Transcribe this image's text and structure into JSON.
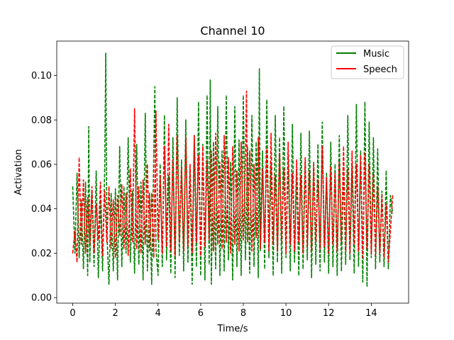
{
  "chart_data": {
    "type": "line",
    "title": "Channel 10",
    "xlabel": "Time/s",
    "ylabel": "Activation",
    "xlim": [
      -0.75,
      15.75
    ],
    "ylim": [
      -0.0025,
      0.1155
    ],
    "xticks": [
      0,
      2,
      4,
      6,
      8,
      10,
      12,
      14
    ],
    "yticks": [
      0.0,
      0.02,
      0.04,
      0.06,
      0.08,
      0.1
    ],
    "ytick_labels": [
      "0.00",
      "0.02",
      "0.04",
      "0.06",
      "0.08",
      "0.10"
    ],
    "grid": false,
    "legend_position": "top-right",
    "series": [
      {
        "name": "Music",
        "color": "#008000",
        "dashed": true,
        "x": [
          0.0,
          0.1,
          0.2,
          0.3,
          0.4,
          0.5,
          0.6,
          0.7,
          0.75,
          0.8,
          0.9,
          1.0,
          1.1,
          1.2,
          1.3,
          1.4,
          1.5,
          1.55,
          1.6,
          1.7,
          1.8,
          1.9,
          2.0,
          2.1,
          2.2,
          2.3,
          2.4,
          2.5,
          2.6,
          2.7,
          2.8,
          2.9,
          3.0,
          3.1,
          3.2,
          3.3,
          3.4,
          3.5,
          3.6,
          3.7,
          3.8,
          3.85,
          3.9,
          4.0,
          4.1,
          4.2,
          4.3,
          4.4,
          4.5,
          4.6,
          4.7,
          4.8,
          4.9,
          5.0,
          5.1,
          5.2,
          5.3,
          5.4,
          5.5,
          5.6,
          5.7,
          5.8,
          5.9,
          6.0,
          6.1,
          6.2,
          6.3,
          6.4,
          6.45,
          6.5,
          6.6,
          6.7,
          6.8,
          6.9,
          7.0,
          7.1,
          7.2,
          7.3,
          7.4,
          7.5,
          7.6,
          7.7,
          7.8,
          7.9,
          8.0,
          8.1,
          8.2,
          8.3,
          8.4,
          8.5,
          8.6,
          8.7,
          8.75,
          8.8,
          8.9,
          9.0,
          9.1,
          9.2,
          9.3,
          9.4,
          9.5,
          9.6,
          9.7,
          9.8,
          9.9,
          10.0,
          10.1,
          10.2,
          10.3,
          10.4,
          10.5,
          10.6,
          10.7,
          10.8,
          10.9,
          11.0,
          11.1,
          11.2,
          11.3,
          11.4,
          11.5,
          11.6,
          11.7,
          11.8,
          11.9,
          12.0,
          12.1,
          12.2,
          12.3,
          12.4,
          12.5,
          12.6,
          12.7,
          12.8,
          12.9,
          13.0,
          13.1,
          13.2,
          13.3,
          13.4,
          13.5,
          13.6,
          13.7,
          13.8,
          13.9,
          14.0,
          14.1,
          14.2,
          14.3,
          14.4,
          14.5,
          14.6,
          14.7,
          14.8,
          14.9,
          15.0
        ],
        "values": [
          0.05,
          0.02,
          0.056,
          0.018,
          0.044,
          0.013,
          0.052,
          0.01,
          0.077,
          0.016,
          0.048,
          0.014,
          0.057,
          0.009,
          0.044,
          0.012,
          0.058,
          0.11,
          0.03,
          0.006,
          0.047,
          0.012,
          0.049,
          0.008,
          0.068,
          0.014,
          0.05,
          0.02,
          0.072,
          0.016,
          0.048,
          0.011,
          0.069,
          0.015,
          0.052,
          0.008,
          0.083,
          0.012,
          0.047,
          0.006,
          0.065,
          0.095,
          0.022,
          0.01,
          0.06,
          0.014,
          0.082,
          0.017,
          0.055,
          0.011,
          0.072,
          0.009,
          0.09,
          0.019,
          0.062,
          0.012,
          0.08,
          0.016,
          0.058,
          0.006,
          0.073,
          0.014,
          0.088,
          0.01,
          0.069,
          0.008,
          0.091,
          0.015,
          0.098,
          0.006,
          0.07,
          0.013,
          0.086,
          0.01,
          0.066,
          0.012,
          0.091,
          0.017,
          0.061,
          0.008,
          0.086,
          0.014,
          0.071,
          0.01,
          0.091,
          0.017,
          0.068,
          0.011,
          0.082,
          0.014,
          0.07,
          0.009,
          0.103,
          0.021,
          0.066,
          0.013,
          0.089,
          0.018,
          0.06,
          0.01,
          0.082,
          0.016,
          0.072,
          0.011,
          0.086,
          0.018,
          0.064,
          0.012,
          0.078,
          0.016,
          0.057,
          0.01,
          0.074,
          0.013,
          0.061,
          0.017,
          0.075,
          0.009,
          0.061,
          0.015,
          0.069,
          0.012,
          0.079,
          0.016,
          0.056,
          0.011,
          0.07,
          0.014,
          0.06,
          0.01,
          0.073,
          0.012,
          0.058,
          0.015,
          0.082,
          0.017,
          0.06,
          0.011,
          0.087,
          0.014,
          0.066,
          0.007,
          0.088,
          0.005,
          0.079,
          0.018,
          0.072,
          0.013,
          0.067,
          0.016,
          0.048,
          0.014,
          0.057,
          0.013,
          0.046,
          0.038
        ]
      },
      {
        "name": "Speech",
        "color": "#ff0000",
        "dashed": true,
        "x": [
          0.0,
          0.1,
          0.2,
          0.3,
          0.4,
          0.5,
          0.6,
          0.7,
          0.8,
          0.9,
          1.0,
          1.1,
          1.2,
          1.3,
          1.4,
          1.5,
          1.6,
          1.7,
          1.8,
          1.9,
          2.0,
          2.1,
          2.2,
          2.3,
          2.4,
          2.5,
          2.6,
          2.7,
          2.8,
          2.9,
          3.0,
          3.1,
          3.2,
          3.3,
          3.4,
          3.5,
          3.6,
          3.7,
          3.8,
          3.9,
          4.0,
          4.1,
          4.2,
          4.3,
          4.4,
          4.5,
          4.6,
          4.7,
          4.8,
          4.9,
          5.0,
          5.1,
          5.2,
          5.3,
          5.4,
          5.5,
          5.6,
          5.7,
          5.8,
          5.9,
          6.0,
          6.1,
          6.2,
          6.3,
          6.4,
          6.5,
          6.6,
          6.7,
          6.8,
          6.9,
          7.0,
          7.1,
          7.2,
          7.3,
          7.4,
          7.5,
          7.6,
          7.7,
          7.8,
          7.9,
          8.0,
          8.1,
          8.15,
          8.2,
          8.3,
          8.4,
          8.5,
          8.6,
          8.7,
          8.8,
          8.9,
          9.0,
          9.1,
          9.2,
          9.3,
          9.4,
          9.5,
          9.6,
          9.7,
          9.8,
          9.9,
          10.0,
          10.1,
          10.2,
          10.3,
          10.4,
          10.5,
          10.6,
          10.7,
          10.8,
          10.9,
          11.0,
          11.1,
          11.2,
          11.3,
          11.4,
          11.5,
          11.6,
          11.7,
          11.8,
          11.9,
          12.0,
          12.1,
          12.2,
          12.3,
          12.4,
          12.5,
          12.6,
          12.7,
          12.8,
          12.9,
          13.0,
          13.1,
          13.2,
          13.3,
          13.4,
          13.5,
          13.6,
          13.7,
          13.8,
          13.9,
          14.0,
          14.1,
          14.2,
          14.3,
          14.4,
          14.5,
          14.6,
          14.7,
          14.8,
          14.9,
          15.0
        ],
        "values": [
          0.02,
          0.03,
          0.016,
          0.063,
          0.024,
          0.053,
          0.02,
          0.045,
          0.024,
          0.05,
          0.02,
          0.042,
          0.026,
          0.052,
          0.019,
          0.048,
          0.025,
          0.05,
          0.022,
          0.044,
          0.018,
          0.046,
          0.028,
          0.051,
          0.022,
          0.047,
          0.019,
          0.058,
          0.025,
          0.085,
          0.022,
          0.05,
          0.02,
          0.053,
          0.024,
          0.06,
          0.021,
          0.047,
          0.018,
          0.084,
          0.026,
          0.055,
          0.02,
          0.068,
          0.023,
          0.078,
          0.021,
          0.062,
          0.019,
          0.073,
          0.025,
          0.058,
          0.021,
          0.072,
          0.023,
          0.06,
          0.02,
          0.073,
          0.025,
          0.064,
          0.019,
          0.068,
          0.023,
          0.062,
          0.026,
          0.066,
          0.021,
          0.074,
          0.024,
          0.061,
          0.022,
          0.073,
          0.025,
          0.063,
          0.02,
          0.068,
          0.024,
          0.057,
          0.021,
          0.07,
          0.026,
          0.062,
          0.093,
          0.025,
          0.066,
          0.021,
          0.06,
          0.027,
          0.072,
          0.022,
          0.058,
          0.025,
          0.067,
          0.021,
          0.074,
          0.024,
          0.055,
          0.021,
          0.065,
          0.025,
          0.058,
          0.02,
          0.07,
          0.024,
          0.056,
          0.021,
          0.062,
          0.025,
          0.055,
          0.02,
          0.063,
          0.023,
          0.057,
          0.021,
          0.06,
          0.025,
          0.053,
          0.022,
          0.068,
          0.023,
          0.054,
          0.02,
          0.059,
          0.024,
          0.056,
          0.021,
          0.061,
          0.025,
          0.068,
          0.021,
          0.058,
          0.02,
          0.066,
          0.024,
          0.06,
          0.021,
          0.064,
          0.018,
          0.065,
          0.022,
          0.06,
          0.02,
          0.056,
          0.019,
          0.05,
          0.02,
          0.046,
          0.018,
          0.042,
          0.016,
          0.03,
          0.046
        ]
      }
    ]
  }
}
